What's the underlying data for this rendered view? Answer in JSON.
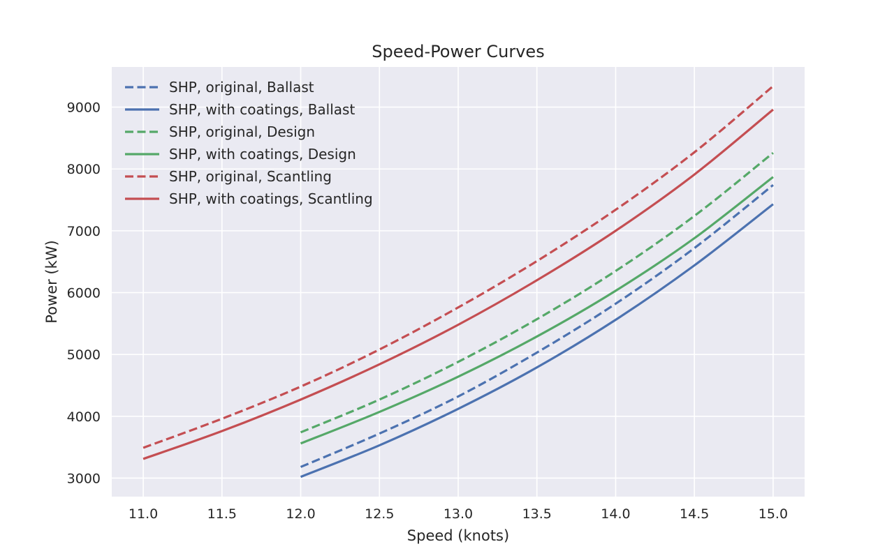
{
  "chart_data": {
    "type": "line",
    "title": "Speed-Power Curves",
    "xlabel": "Speed (knots)",
    "ylabel": "Power (kW)",
    "xlim": [
      10.8,
      15.2
    ],
    "ylim": [
      2700,
      9650
    ],
    "xticks": [
      11.0,
      11.5,
      12.0,
      12.5,
      13.0,
      13.5,
      14.0,
      14.5,
      15.0
    ],
    "xtick_labels": [
      "11.0",
      "11.5",
      "12.0",
      "12.5",
      "13.0",
      "13.5",
      "14.0",
      "14.5",
      "15.0"
    ],
    "yticks": [
      3000,
      4000,
      5000,
      6000,
      7000,
      8000,
      9000
    ],
    "ytick_labels": [
      "3000",
      "4000",
      "5000",
      "6000",
      "7000",
      "8000",
      "9000"
    ],
    "grid": true,
    "legend_position": "top-left",
    "colors": {
      "plot_background": "#eaeaf2",
      "grid": "#ffffff",
      "ballast": "#4c72b0",
      "design": "#55a868",
      "scantling": "#c44e52"
    },
    "series": [
      {
        "name": "SHP, original, Ballast",
        "style": "dashed",
        "color": "#4c72b0",
        "x": [
          12.0,
          12.5,
          13.0,
          13.5,
          14.0,
          14.5,
          15.0
        ],
        "y": [
          3180,
          3720,
          4320,
          5030,
          5820,
          6720,
          7740
        ]
      },
      {
        "name": "SHP, with coatings, Ballast",
        "style": "solid",
        "color": "#4c72b0",
        "x": [
          12.0,
          12.5,
          13.0,
          13.5,
          14.0,
          14.5,
          15.0
        ],
        "y": [
          3020,
          3530,
          4120,
          4790,
          5560,
          6440,
          7430
        ]
      },
      {
        "name": "SHP, original, Design",
        "style": "dashed",
        "color": "#55a868",
        "x": [
          12.0,
          12.5,
          13.0,
          13.5,
          14.0,
          14.5,
          15.0
        ],
        "y": [
          3740,
          4270,
          4880,
          5570,
          6350,
          7240,
          8260
        ]
      },
      {
        "name": "SHP, with coatings, Design",
        "style": "solid",
        "color": "#55a868",
        "x": [
          12.0,
          12.5,
          13.0,
          13.5,
          14.0,
          14.5,
          15.0
        ],
        "y": [
          3560,
          4070,
          4640,
          5290,
          6030,
          6880,
          7870
        ]
      },
      {
        "name": "SHP, original, Scantling",
        "style": "dashed",
        "color": "#c44e52",
        "x": [
          11.0,
          11.5,
          12.0,
          12.5,
          13.0,
          13.5,
          14.0,
          14.5,
          15.0
        ],
        "y": [
          3490,
          3960,
          4480,
          5080,
          5760,
          6510,
          7340,
          8270,
          9340
        ]
      },
      {
        "name": "SHP, with coatings, Scantling",
        "style": "solid",
        "color": "#c44e52",
        "x": [
          11.0,
          11.5,
          12.0,
          12.5,
          13.0,
          13.5,
          14.0,
          14.5,
          15.0
        ],
        "y": [
          3310,
          3760,
          4270,
          4840,
          5480,
          6200,
          7000,
          7910,
          8960
        ]
      }
    ]
  }
}
